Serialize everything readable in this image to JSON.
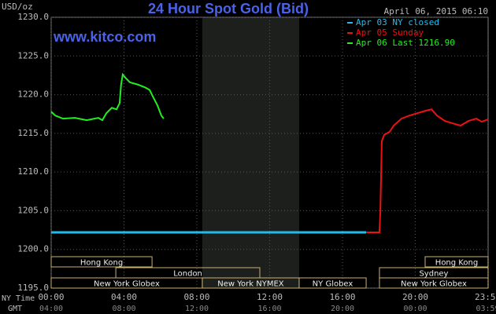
{
  "chart_data": {
    "type": "line",
    "title": "24 Hour Spot Gold (Bid)",
    "subtitle": "www.kitco.com",
    "timestamp": "April 06, 2015 06:10",
    "y_label": "USD/oz",
    "x_label": "NY Time",
    "x2_label": "GMT",
    "xlim": [
      0,
      24
    ],
    "xticks": [
      {
        "value": 0,
        "label": "00:00"
      },
      {
        "value": 4,
        "label": "04:00"
      },
      {
        "value": 8,
        "label": "08:00"
      },
      {
        "value": 12,
        "label": "12:00"
      },
      {
        "value": 16,
        "label": "16:00"
      },
      {
        "value": 20,
        "label": "20:00"
      },
      {
        "value": 23.98,
        "label": "23:59"
      }
    ],
    "x2ticks": [
      {
        "value": 0,
        "label": "04:00"
      },
      {
        "value": 4,
        "label": "08:00"
      },
      {
        "value": 8,
        "label": "12:00"
      },
      {
        "value": 12,
        "label": "16:00"
      },
      {
        "value": 16,
        "label": "20:00"
      },
      {
        "value": 20,
        "label": "00:00"
      },
      {
        "value": 23.98,
        "label": "03:59"
      }
    ],
    "ylim": [
      1195,
      1230
    ],
    "yticks": [
      {
        "value": 1195,
        "label": "1195.0"
      },
      {
        "value": 1200,
        "label": "1200.0"
      },
      {
        "value": 1205,
        "label": "1205.0"
      },
      {
        "value": 1210,
        "label": "1210.0"
      },
      {
        "value": 1215,
        "label": "1215.0"
      },
      {
        "value": 1220,
        "label": "1220.0"
      },
      {
        "value": 1225,
        "label": "1225.0"
      },
      {
        "value": 1230,
        "label": "1230.0"
      }
    ],
    "grid": true,
    "series": [
      {
        "name": "Apr 03 NY closed",
        "color": "#22bbee",
        "x": [
          0,
          17.3
        ],
        "values": [
          1202.2,
          1202.2
        ]
      },
      {
        "name": "Apr 05 Sunday",
        "color": "#ee1111",
        "x": [
          17.3,
          18.03,
          18.08,
          18.16,
          18.29,
          18.59,
          18.81,
          19.24,
          19.68,
          20.11,
          20.54,
          20.89,
          21.19,
          21.62,
          22.05,
          22.49,
          22.92,
          23.35,
          23.65,
          24.0
        ],
        "values": [
          1202.2,
          1202.2,
          1204.9,
          1214.0,
          1214.8,
          1215.2,
          1216.0,
          1216.9,
          1217.3,
          1217.6,
          1217.9,
          1218.1,
          1217.3,
          1216.6,
          1216.3,
          1216.0,
          1216.6,
          1216.9,
          1216.5,
          1216.8
        ]
      },
      {
        "name": "Apr 06 Last 1216.90",
        "color": "#22ee22",
        "x": [
          0,
          0.22,
          0.65,
          1.3,
          1.95,
          2.59,
          2.81,
          3.03,
          3.33,
          3.59,
          3.76,
          3.84,
          3.93,
          4.11,
          4.32,
          4.76,
          5.19,
          5.41,
          5.62,
          5.84,
          6.05,
          6.18
        ],
        "values": [
          1217.8,
          1217.3,
          1216.9,
          1217.0,
          1216.7,
          1217.0,
          1216.7,
          1217.6,
          1218.3,
          1218.1,
          1218.9,
          1221.3,
          1222.6,
          1222.1,
          1221.6,
          1221.3,
          1220.9,
          1220.6,
          1219.6,
          1218.6,
          1217.3,
          1216.9
        ]
      }
    ],
    "sessions": [
      {
        "label": "Hong Kong",
        "start": 0,
        "end": 5.54,
        "row": 0
      },
      {
        "label": "London",
        "start": 3.55,
        "end": 11.46,
        "row": 1
      },
      {
        "label": "New York Globex",
        "start": 0,
        "end": 8.3,
        "row": 2
      },
      {
        "label": "New York NYMEX",
        "start": 8.3,
        "end": 13.62,
        "row": 2
      },
      {
        "label": "NY Globex",
        "start": 13.62,
        "end": 17.3,
        "row": 2
      },
      {
        "label": "Hong Kong",
        "start": 20.54,
        "end": 24,
        "row": 0
      },
      {
        "label": "Sydney",
        "start": 18.03,
        "end": 24,
        "row": 1
      },
      {
        "label": "New York Globex",
        "start": 18.03,
        "end": 24,
        "row": 2
      }
    ]
  }
}
